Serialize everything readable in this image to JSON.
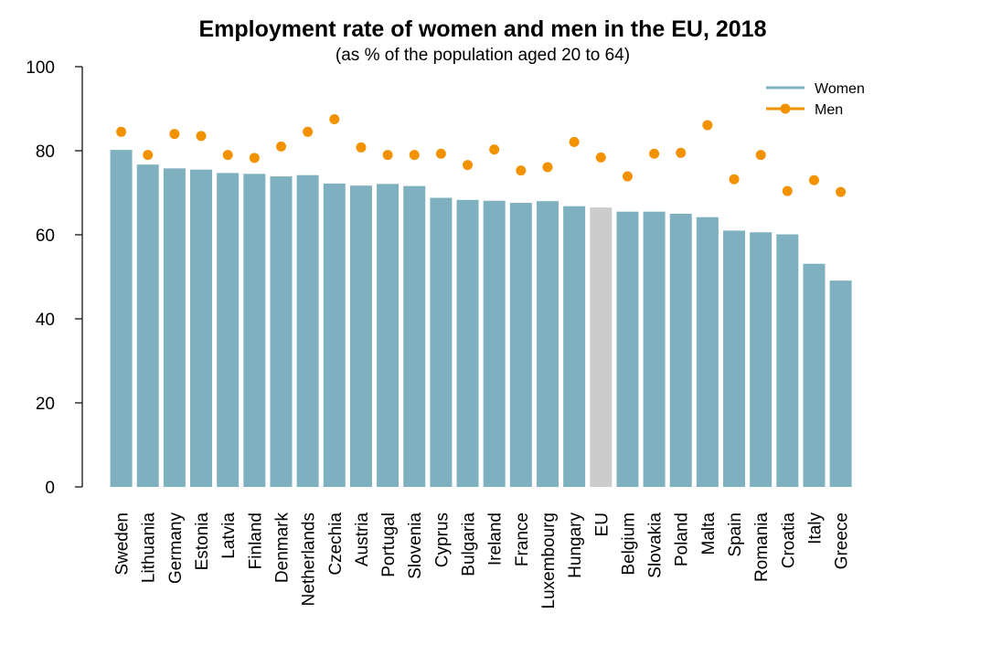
{
  "chart_data": {
    "type": "bar",
    "title": "Employment rate of women and men in the EU, 2018",
    "subtitle": "(as % of the population aged 20 to 64)",
    "xlabel": "",
    "ylabel": "",
    "ylim": [
      0,
      100
    ],
    "yticks": [
      0,
      20,
      40,
      60,
      80,
      100
    ],
    "grid": false,
    "legend_position": "top-right",
    "categories": [
      "Sweden",
      "Lithuania",
      "Germany",
      "Estonia",
      "Latvia",
      "Finland",
      "Denmark",
      "Netherlands",
      "Czechia",
      "Austria",
      "Portugal",
      "Slovenia",
      "Cyprus",
      "Bulgaria",
      "Ireland",
      "France",
      "Luxembourg",
      "Hungary",
      "EU",
      "Belgium",
      "Slovakia",
      "Poland",
      "Malta",
      "Spain",
      "Romania",
      "Croatia",
      "Italy",
      "Greece"
    ],
    "highlight_category": "EU",
    "series": [
      {
        "name": "Women",
        "type": "bar",
        "color": "#7fb0bf",
        "highlight_color": "#cccccc",
        "values": [
          80.2,
          76.7,
          75.8,
          75.5,
          74.7,
          74.5,
          73.9,
          74.2,
          72.2,
          71.7,
          72.1,
          71.6,
          68.8,
          68.3,
          68.1,
          67.6,
          68.0,
          66.8,
          66.5,
          65.5,
          65.5,
          65.0,
          64.2,
          61.0,
          60.6,
          60.1,
          53.1,
          49.1
        ]
      },
      {
        "name": "Men",
        "type": "scatter",
        "color": "#f39200",
        "values": [
          84.5,
          79.0,
          84.0,
          83.5,
          79.0,
          78.3,
          81.0,
          84.5,
          87.5,
          80.8,
          79.0,
          79.0,
          79.3,
          76.6,
          80.3,
          75.3,
          76.1,
          82.1,
          78.4,
          73.9,
          79.3,
          79.5,
          86.1,
          73.2,
          79.0,
          70.4,
          73.0,
          70.2
        ]
      }
    ]
  }
}
